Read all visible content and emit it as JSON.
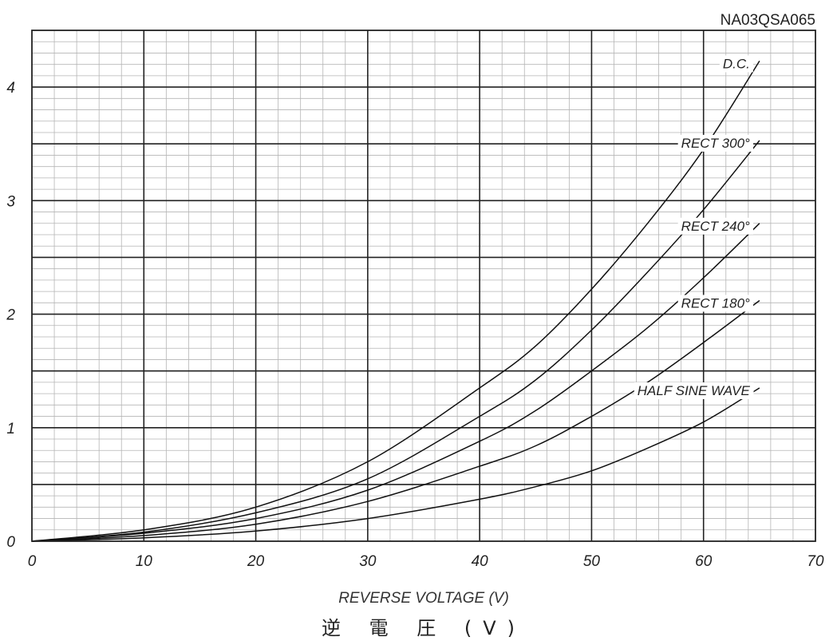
{
  "chart_data": {
    "type": "line",
    "code": "NA03QSA065",
    "xlabel": "REVERSE VOLTAGE (V)",
    "xlabel_jp": "逆 電 圧 (V)",
    "ylabel": "",
    "xlim": [
      0,
      70
    ],
    "ylim": [
      0,
      4.5
    ],
    "x_ticks": [
      0,
      10,
      20,
      30,
      40,
      50,
      60,
      70
    ],
    "y_ticks": [
      0,
      1,
      2,
      3,
      4
    ],
    "grid": true,
    "series": [
      {
        "name": "D.C.",
        "x": [
          0,
          10,
          20,
          30,
          40,
          45,
          50,
          55,
          60,
          65
        ],
        "y": [
          0,
          0.1,
          0.3,
          0.7,
          1.35,
          1.72,
          2.22,
          2.8,
          3.45,
          4.23
        ]
      },
      {
        "name": "RECT 300°",
        "x": [
          0,
          10,
          20,
          30,
          40,
          45,
          50,
          55,
          60,
          65
        ],
        "y": [
          0,
          0.08,
          0.25,
          0.55,
          1.1,
          1.42,
          1.86,
          2.37,
          2.92,
          3.53
        ]
      },
      {
        "name": "RECT 240°",
        "x": [
          0,
          10,
          20,
          30,
          40,
          45,
          50,
          55,
          60,
          65
        ],
        "y": [
          0,
          0.07,
          0.2,
          0.45,
          0.88,
          1.15,
          1.5,
          1.88,
          2.32,
          2.8
        ]
      },
      {
        "name": "RECT 180°",
        "x": [
          0,
          10,
          20,
          30,
          40,
          45,
          50,
          55,
          60,
          65
        ],
        "y": [
          0,
          0.05,
          0.15,
          0.35,
          0.66,
          0.84,
          1.1,
          1.4,
          1.75,
          2.12
        ]
      },
      {
        "name": "HALF SINE WAVE",
        "x": [
          0,
          10,
          20,
          30,
          40,
          45,
          50,
          55,
          60,
          65
        ],
        "y": [
          0,
          0.03,
          0.09,
          0.2,
          0.37,
          0.48,
          0.62,
          0.82,
          1.05,
          1.35
        ]
      }
    ]
  }
}
